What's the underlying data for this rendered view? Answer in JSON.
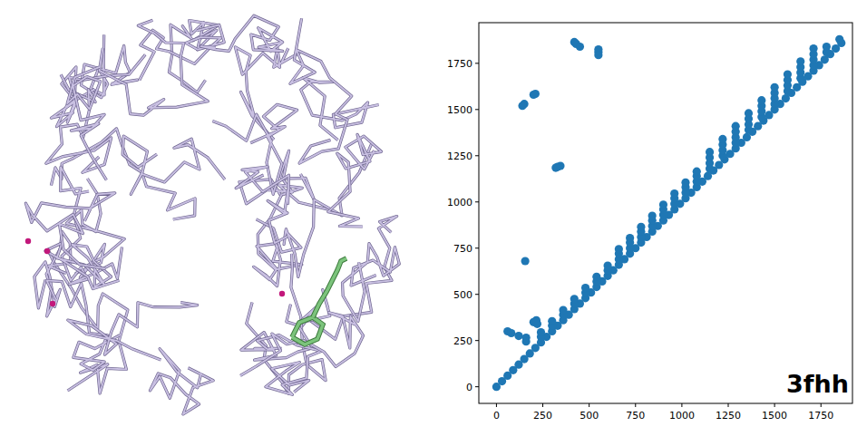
{
  "chart_data": {
    "type": "scatter",
    "annotation": "3fhh",
    "color": "#1f77b4",
    "marker": "circle",
    "grid": false,
    "xlim": [
      -95,
      1920
    ],
    "ylim": [
      -90,
      1970
    ],
    "xticks": [
      0,
      250,
      500,
      750,
      1000,
      1250,
      1500,
      1750
    ],
    "yticks": [
      0,
      250,
      500,
      750,
      1000,
      1250,
      1500,
      1750
    ],
    "x": [
      0,
      30,
      60,
      90,
      120,
      150,
      180,
      210,
      240,
      270,
      300,
      330,
      360,
      390,
      420,
      450,
      480,
      510,
      540,
      570,
      600,
      630,
      660,
      690,
      720,
      750,
      780,
      810,
      840,
      870,
      900,
      930,
      960,
      990,
      1020,
      1050,
      1080,
      1110,
      1140,
      1170,
      1200,
      1230,
      1260,
      1290,
      1320,
      1350,
      1380,
      1410,
      1440,
      1470,
      1500,
      1530,
      1560,
      1590,
      1620,
      1650,
      1680,
      1710,
      1740,
      1770,
      1800,
      1830,
      1860,
      240,
      240,
      300,
      300,
      360,
      360,
      420,
      420,
      480,
      480,
      540,
      540,
      600,
      600,
      660,
      660,
      660,
      720,
      720,
      720,
      780,
      780,
      780,
      840,
      840,
      840,
      900,
      900,
      900,
      960,
      960,
      960,
      1020,
      1020,
      1020,
      1080,
      1080,
      1080,
      1150,
      1150,
      1150,
      1150,
      1220,
      1220,
      1220,
      1220,
      1290,
      1290,
      1290,
      1290,
      1360,
      1360,
      1360,
      1360,
      1430,
      1430,
      1430,
      1430,
      1500,
      1500,
      1500,
      1500,
      1570,
      1570,
      1570,
      1570,
      1640,
      1640,
      1640,
      1640,
      1710,
      1710,
      1710,
      1710,
      1780,
      1780,
      1850,
      60,
      80,
      120,
      160,
      160,
      200,
      220,
      215,
      330,
      345,
      320,
      155,
      150,
      140,
      200,
      210,
      420,
      430,
      450,
      550,
      550,
      550
    ],
    "values": [
      0,
      30,
      60,
      90,
      120,
      150,
      180,
      210,
      240,
      270,
      300,
      330,
      360,
      390,
      420,
      450,
      480,
      510,
      540,
      570,
      600,
      630,
      660,
      690,
      720,
      750,
      780,
      810,
      840,
      870,
      900,
      930,
      960,
      990,
      1020,
      1050,
      1080,
      1110,
      1140,
      1170,
      1200,
      1230,
      1260,
      1290,
      1320,
      1350,
      1380,
      1410,
      1440,
      1470,
      1500,
      1530,
      1560,
      1590,
      1620,
      1650,
      1680,
      1710,
      1740,
      1770,
      1800,
      1830,
      1860,
      270,
      295,
      330,
      355,
      390,
      415,
      450,
      475,
      510,
      535,
      570,
      595,
      630,
      655,
      690,
      720,
      745,
      750,
      780,
      805,
      810,
      840,
      865,
      870,
      900,
      925,
      930,
      960,
      985,
      990,
      1020,
      1045,
      1050,
      1080,
      1105,
      1110,
      1140,
      1165,
      1180,
      1210,
      1240,
      1270,
      1250,
      1280,
      1310,
      1340,
      1320,
      1350,
      1380,
      1410,
      1390,
      1420,
      1450,
      1480,
      1460,
      1490,
      1520,
      1550,
      1530,
      1560,
      1590,
      1620,
      1600,
      1630,
      1660,
      1690,
      1670,
      1700,
      1730,
      1760,
      1740,
      1770,
      1800,
      1830,
      1810,
      1840,
      1880,
      300,
      290,
      275,
      265,
      245,
      350,
      340,
      360,
      1190,
      1195,
      1185,
      680,
      1530,
      1520,
      1580,
      1585,
      1865,
      1855,
      1840,
      1825,
      1810,
      1795
    ]
  }
}
